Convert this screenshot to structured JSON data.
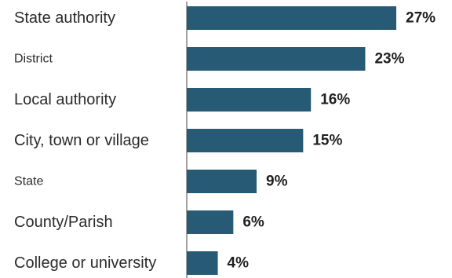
{
  "chart_data": {
    "type": "bar",
    "orientation": "horizontal",
    "categories": [
      "State authority",
      "District",
      "Local authority",
      "City, town or village",
      "State",
      "County/Parish",
      "College or university"
    ],
    "values": [
      27,
      23,
      16,
      15,
      9,
      6,
      4
    ],
    "value_labels": [
      "27%",
      "23%",
      "16%",
      "15%",
      "9%",
      "6%",
      "4%"
    ],
    "unit": "%",
    "xlim": [
      0,
      27
    ],
    "grid": false,
    "legend": "none",
    "bar_color": "#275a75"
  }
}
